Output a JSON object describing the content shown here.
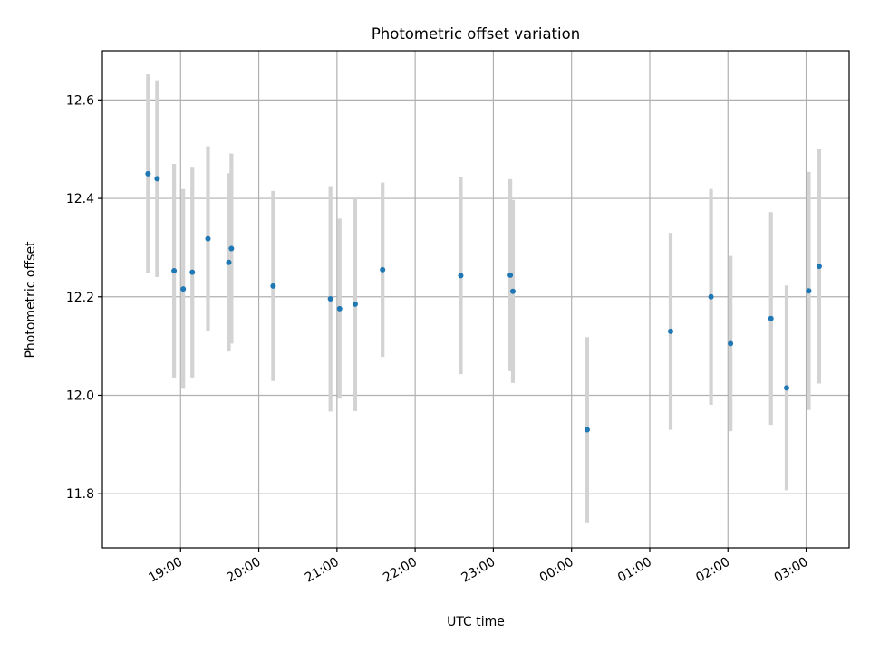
{
  "chart_data": {
    "type": "scatter",
    "title": "Photometric offset variation",
    "xlabel": "UTC time",
    "ylabel": "Photometric offset",
    "ylim": [
      11.69,
      12.7
    ],
    "xlim": [
      "18:00",
      "03:33"
    ],
    "x_ticks": [
      "19:00",
      "20:00",
      "21:00",
      "22:00",
      "23:00",
      "00:00",
      "01:00",
      "02:00",
      "03:00"
    ],
    "y_ticks": [
      11.8,
      12.0,
      12.2,
      12.4,
      12.6
    ],
    "x_tick_rotation_deg": 30,
    "grid": true,
    "errorbar_color": "#d3d3d3",
    "marker_color": "#1f77b4",
    "points": [
      {
        "t": "18:35",
        "y": 12.45,
        "err": 0.202
      },
      {
        "t": "18:42",
        "y": 12.44,
        "err": 0.2
      },
      {
        "t": "18:55",
        "y": 12.253,
        "err": 0.217
      },
      {
        "t": "19:02",
        "y": 12.216,
        "err": 0.203
      },
      {
        "t": "19:09",
        "y": 12.25,
        "err": 0.214
      },
      {
        "t": "19:21",
        "y": 12.318,
        "err": 0.188
      },
      {
        "t": "19:37",
        "y": 12.27,
        "err": 0.181
      },
      {
        "t": "19:39",
        "y": 12.298,
        "err": 0.193
      },
      {
        "t": "20:11",
        "y": 12.222,
        "err": 0.193
      },
      {
        "t": "20:55",
        "y": 12.196,
        "err": 0.229
      },
      {
        "t": "21:02",
        "y": 12.176,
        "err": 0.183
      },
      {
        "t": "21:14",
        "y": 12.185,
        "err": 0.217
      },
      {
        "t": "21:35",
        "y": 12.255,
        "err": 0.177
      },
      {
        "t": "22:35",
        "y": 12.243,
        "err": 0.2
      },
      {
        "t": "23:13",
        "y": 12.244,
        "err": 0.195
      },
      {
        "t": "23:15",
        "y": 12.211,
        "err": 0.186
      },
      {
        "t": "00:12",
        "y": 11.93,
        "err": 0.188
      },
      {
        "t": "01:16",
        "y": 12.13,
        "err": 0.2
      },
      {
        "t": "01:47",
        "y": 12.2,
        "err": 0.219
      },
      {
        "t": "02:02",
        "y": 12.105,
        "err": 0.178
      },
      {
        "t": "02:33",
        "y": 12.156,
        "err": 0.216
      },
      {
        "t": "02:45",
        "y": 12.015,
        "err": 0.208
      },
      {
        "t": "03:02",
        "y": 12.212,
        "err": 0.242
      },
      {
        "t": "03:10",
        "y": 12.262,
        "err": 0.238
      }
    ]
  }
}
